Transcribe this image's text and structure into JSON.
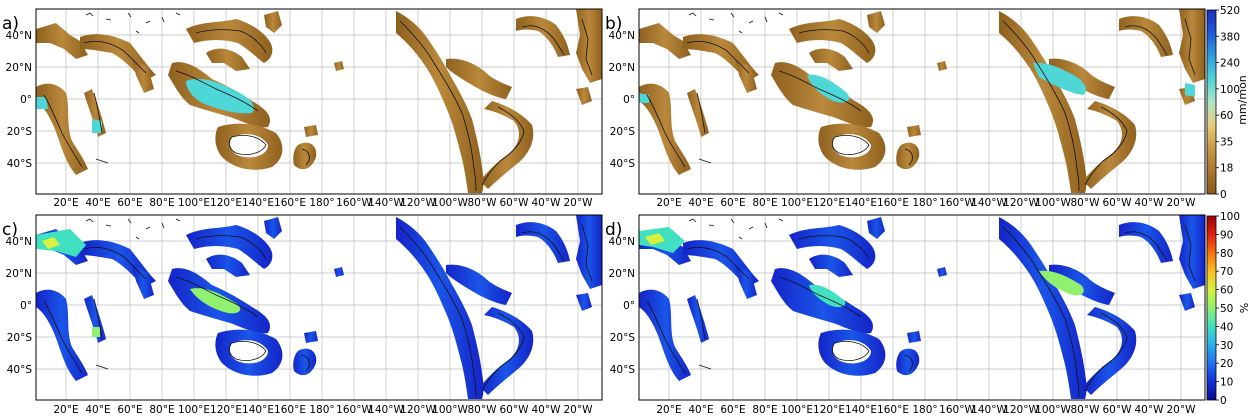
{
  "panels": [
    {
      "label": "a)",
      "variable": "precip"
    },
    {
      "label": "b)",
      "variable": "precip"
    },
    {
      "label": "c)",
      "variable": "percent"
    },
    {
      "label": "d)",
      "variable": "percent"
    }
  ],
  "lat_ticks": [
    "40°N",
    "20°N",
    "0°",
    "20°S",
    "40°S"
  ],
  "lon_ticks": [
    "20°E",
    "40°E",
    "60°E",
    "80°E",
    "100°E",
    "120°E",
    "140°E",
    "160°E",
    "180°",
    "160°W",
    "140°W",
    "120°W",
    "100°W",
    "80°W",
    "60°W",
    "40°W",
    "20°W"
  ],
  "colorbar_top": {
    "unit": "mm/mon",
    "ticks": [
      "520",
      "380",
      "240",
      "100",
      "60",
      "35",
      "18",
      "0"
    ],
    "colors": [
      "#8a5a18",
      "#a8762a",
      "#c99a45",
      "#e6cc78",
      "#aee8c8",
      "#4fd6d6",
      "#2f9ee0",
      "#1f5bd8",
      "#1a2fbf"
    ]
  },
  "colorbar_bottom": {
    "unit": "%",
    "ticks": [
      "100",
      "90",
      "80",
      "70",
      "60",
      "50",
      "40",
      "30",
      "20",
      "10",
      "0"
    ],
    "colors": [
      "#0a0a90",
      "#1030d8",
      "#2070f0",
      "#28b0f0",
      "#40e0c0",
      "#90f070",
      "#d8f040",
      "#f8c020",
      "#f87010",
      "#e02010",
      "#a00000"
    ]
  },
  "colors": {
    "ocean": "#ffffff",
    "land_line": "#111111",
    "grid": "#bdbdbd",
    "brown_band": "#9a6a24",
    "blue_band": "#1424c8"
  }
}
